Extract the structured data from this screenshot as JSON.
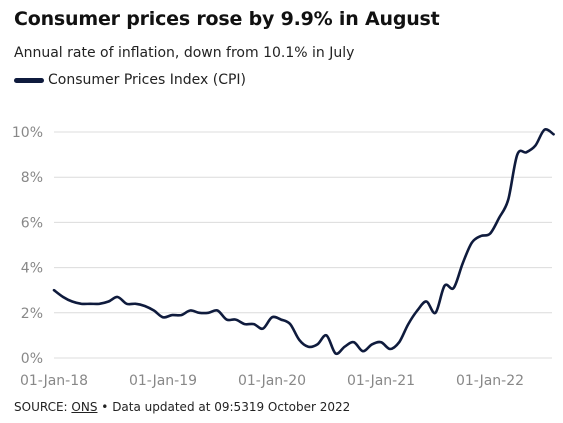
{
  "title": "Consumer prices rose by 9.9% in August",
  "subtitle": "Annual rate of inflation, down from 10.1% in July",
  "footer": {
    "source_prefix": "SOURCE:",
    "source_link": "ONS",
    "updated": "• Data updated at 09:5319 October 2022"
  },
  "colors": {
    "line": "#0f1b3d",
    "grid": "#dcdcdc",
    "axis_text": "#888888"
  },
  "chart_data": {
    "type": "line",
    "title": "Consumer prices rose by 9.9% in August",
    "xlabel": "",
    "ylabel": "",
    "ylim": [
      0,
      10
    ],
    "x_ticks": [
      "01-Jan-18",
      "01-Jan-19",
      "01-Jan-20",
      "01-Jan-21",
      "01-Jan-22"
    ],
    "y_ticks": [
      "0%",
      "2%",
      "4%",
      "6%",
      "8%",
      "10%"
    ],
    "legend": "top-left",
    "grid": "horizontal",
    "series": [
      {
        "name": "Consumer Prices Index (CPI)",
        "x": [
          "2018-01",
          "2018-02",
          "2018-03",
          "2018-04",
          "2018-05",
          "2018-06",
          "2018-07",
          "2018-08",
          "2018-09",
          "2018-10",
          "2018-11",
          "2018-12",
          "2019-01",
          "2019-02",
          "2019-03",
          "2019-04",
          "2019-05",
          "2019-06",
          "2019-07",
          "2019-08",
          "2019-09",
          "2019-10",
          "2019-11",
          "2019-12",
          "2020-01",
          "2020-02",
          "2020-03",
          "2020-04",
          "2020-05",
          "2020-06",
          "2020-07",
          "2020-08",
          "2020-09",
          "2020-10",
          "2020-11",
          "2020-12",
          "2021-01",
          "2021-02",
          "2021-03",
          "2021-04",
          "2021-05",
          "2021-06",
          "2021-07",
          "2021-08",
          "2021-09",
          "2021-10",
          "2021-11",
          "2021-12",
          "2022-01",
          "2022-02",
          "2022-03",
          "2022-04",
          "2022-05",
          "2022-06",
          "2022-07",
          "2022-08"
        ],
        "values": [
          3.0,
          2.7,
          2.5,
          2.4,
          2.4,
          2.4,
          2.5,
          2.7,
          2.4,
          2.4,
          2.3,
          2.1,
          1.8,
          1.9,
          1.9,
          2.1,
          2.0,
          2.0,
          2.1,
          1.7,
          1.7,
          1.5,
          1.5,
          1.3,
          1.8,
          1.7,
          1.5,
          0.8,
          0.5,
          0.6,
          1.0,
          0.2,
          0.5,
          0.7,
          0.3,
          0.6,
          0.7,
          0.4,
          0.7,
          1.5,
          2.1,
          2.5,
          2.0,
          3.2,
          3.1,
          4.2,
          5.1,
          5.4,
          5.5,
          6.2,
          7.0,
          9.0,
          9.1,
          9.4,
          10.1,
          9.9
        ]
      }
    ]
  }
}
